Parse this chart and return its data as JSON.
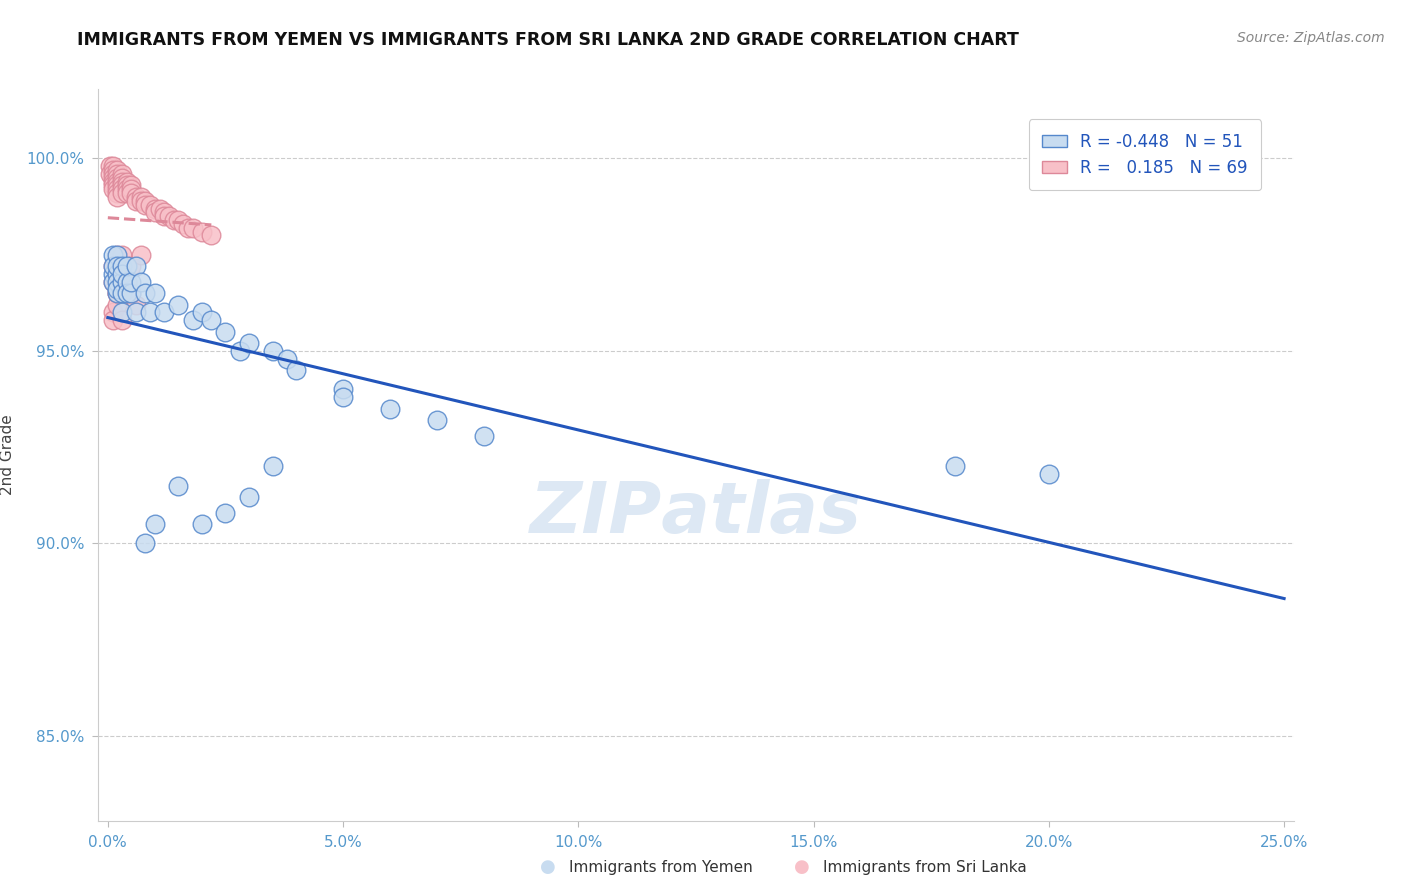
{
  "title": "IMMIGRANTS FROM YEMEN VS IMMIGRANTS FROM SRI LANKA 2ND GRADE CORRELATION CHART",
  "source_text": "Source: ZipAtlas.com",
  "ylabel": "2nd Grade",
  "xlabel_yemen": "Immigrants from Yemen",
  "xlabel_srilanka": "Immigrants from Sri Lanka",
  "xlim": [
    -0.002,
    0.252
  ],
  "ylim": [
    0.828,
    1.018
  ],
  "xticks": [
    0.0,
    0.05,
    0.1,
    0.15,
    0.2,
    0.25
  ],
  "yticks": [
    0.85,
    0.9,
    0.95,
    1.0
  ],
  "ytick_labels": [
    "85.0%",
    "90.0%",
    "95.0%",
    "100.0%"
  ],
  "xtick_labels": [
    "0.0%",
    "5.0%",
    "10.0%",
    "15.0%",
    "20.0%",
    "25.0%"
  ],
  "legend_r_yemen": "-0.448",
  "legend_n_yemen": "51",
  "legend_r_srilanka": "0.185",
  "legend_n_srilanka": "69",
  "color_yemen_face": "#c8dcf0",
  "color_yemen_edge": "#5588cc",
  "color_srilanka_face": "#f8c0c8",
  "color_srilanka_edge": "#dd8899",
  "color_line_yemen": "#2255bb",
  "color_line_srilanka": "#dd8899",
  "watermark_color": "#dde8f4",
  "background_color": "#ffffff",
  "grid_color": "#cccccc",
  "tick_color": "#5599cc",
  "title_color": "#111111",
  "ylabel_color": "#444444",
  "source_color": "#888888",
  "yemen_x": [
    0.001,
    0.001,
    0.001,
    0.001,
    0.002,
    0.002,
    0.002,
    0.002,
    0.002,
    0.002,
    0.003,
    0.003,
    0.003,
    0.003,
    0.003,
    0.004,
    0.004,
    0.004,
    0.005,
    0.005,
    0.006,
    0.006,
    0.007,
    0.008,
    0.009,
    0.01,
    0.012,
    0.015,
    0.018,
    0.02,
    0.022,
    0.025,
    0.028,
    0.03,
    0.035,
    0.038,
    0.04,
    0.05,
    0.06,
    0.07,
    0.08,
    0.02,
    0.025,
    0.03,
    0.035,
    0.008,
    0.01,
    0.015,
    0.05,
    0.18,
    0.2
  ],
  "yemen_y": [
    0.97,
    0.975,
    0.972,
    0.968,
    0.965,
    0.97,
    0.975,
    0.968,
    0.972,
    0.966,
    0.968,
    0.972,
    0.965,
    0.97,
    0.96,
    0.968,
    0.965,
    0.972,
    0.965,
    0.968,
    0.96,
    0.972,
    0.968,
    0.965,
    0.96,
    0.965,
    0.96,
    0.962,
    0.958,
    0.96,
    0.958,
    0.955,
    0.95,
    0.952,
    0.95,
    0.948,
    0.945,
    0.94,
    0.935,
    0.932,
    0.928,
    0.905,
    0.908,
    0.912,
    0.92,
    0.9,
    0.905,
    0.915,
    0.938,
    0.92,
    0.918
  ],
  "srilanka_x": [
    0.0005,
    0.0005,
    0.001,
    0.001,
    0.001,
    0.001,
    0.001,
    0.001,
    0.001,
    0.002,
    0.002,
    0.002,
    0.002,
    0.002,
    0.002,
    0.002,
    0.002,
    0.003,
    0.003,
    0.003,
    0.003,
    0.003,
    0.003,
    0.004,
    0.004,
    0.004,
    0.004,
    0.005,
    0.005,
    0.005,
    0.006,
    0.006,
    0.007,
    0.007,
    0.008,
    0.008,
    0.009,
    0.01,
    0.01,
    0.011,
    0.012,
    0.012,
    0.013,
    0.014,
    0.015,
    0.016,
    0.017,
    0.018,
    0.02,
    0.022,
    0.001,
    0.001,
    0.002,
    0.002,
    0.002,
    0.003,
    0.003,
    0.004,
    0.005,
    0.006,
    0.001,
    0.001,
    0.002,
    0.003,
    0.002,
    0.003,
    0.004,
    0.005,
    0.007
  ],
  "srilanka_y": [
    0.998,
    0.996,
    0.998,
    0.997,
    0.996,
    0.995,
    0.994,
    0.993,
    0.992,
    0.997,
    0.996,
    0.995,
    0.994,
    0.993,
    0.992,
    0.991,
    0.99,
    0.996,
    0.995,
    0.994,
    0.993,
    0.992,
    0.991,
    0.994,
    0.993,
    0.992,
    0.991,
    0.993,
    0.992,
    0.991,
    0.99,
    0.989,
    0.99,
    0.989,
    0.989,
    0.988,
    0.988,
    0.987,
    0.986,
    0.987,
    0.986,
    0.985,
    0.985,
    0.984,
    0.984,
    0.983,
    0.982,
    0.982,
    0.981,
    0.98,
    0.972,
    0.968,
    0.975,
    0.97,
    0.965,
    0.975,
    0.97,
    0.968,
    0.965,
    0.962,
    0.96,
    0.958,
    0.962,
    0.958,
    0.965,
    0.97,
    0.968,
    0.972,
    0.975
  ]
}
